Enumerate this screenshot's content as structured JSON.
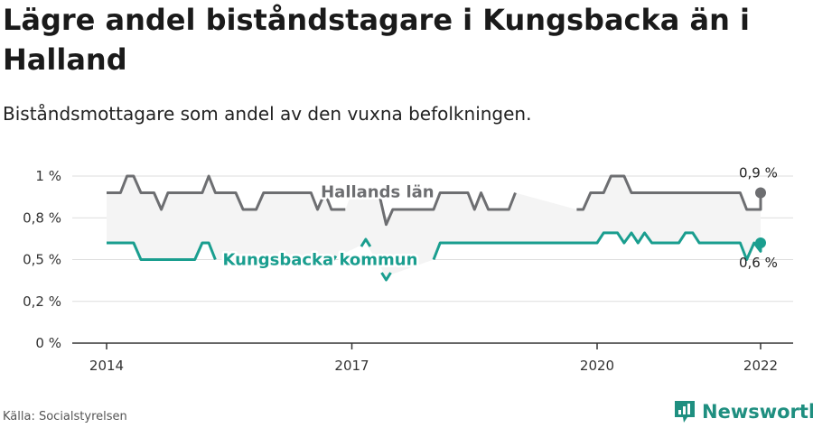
{
  "header": {
    "title": "Lägre andel biståndstagare i Kungsbacka än i Halland",
    "subtitle": "Biståndsmottagare som andel av den vuxna befolkningen."
  },
  "footer": {
    "source": "Källa: Socialstyrelsen",
    "brand": "Newsworthy"
  },
  "colors": {
    "halland": "#6d6e71",
    "kungsbacka": "#1a9e8f",
    "band": "#f4f4f4",
    "grid": "#dddddd",
    "axis": "#333333"
  },
  "icons": {
    "brand": "bar-chart-icon"
  },
  "chart_data": {
    "type": "line",
    "title": "Lägre andel biståndstagare i Kungsbacka än i Halland",
    "subtitle": "Biståndsmottagare som andel av den vuxna befolkningen.",
    "xlim": [
      2014,
      2022.25
    ],
    "ylim": [
      0,
      1.05
    ],
    "x_ticks": [
      2014,
      2017,
      2020,
      2022
    ],
    "x_tick_labels": [
      "2014",
      "2017",
      "2020",
      "2022"
    ],
    "y_ticks": [
      0,
      0.25,
      0.5,
      0.75,
      1.0
    ],
    "y_tick_labels": [
      "0 %",
      "0,2 %",
      "0,5 %",
      "0,8 %",
      "1 %"
    ],
    "grid": "horizontal",
    "series": [
      {
        "name": "Hallands län",
        "color": "#6d6e71",
        "label_at": [
          2016.62,
          0.905
        ],
        "end_label": "0,9 %",
        "points": [
          [
            2014.0,
            0.9
          ],
          [
            2014.17,
            0.9
          ],
          [
            2014.25,
            1.0
          ],
          [
            2014.33,
            1.0
          ],
          [
            2014.42,
            0.9
          ],
          [
            2014.58,
            0.9
          ],
          [
            2014.67,
            0.8
          ],
          [
            2014.75,
            0.9
          ],
          [
            2015.08,
            0.9
          ],
          [
            2015.17,
            0.9
          ],
          [
            2015.25,
            1.0
          ],
          [
            2015.33,
            0.9
          ],
          [
            2015.58,
            0.9
          ],
          [
            2015.67,
            0.8
          ],
          [
            2015.83,
            0.8
          ],
          [
            2015.92,
            0.9
          ],
          [
            2016.5,
            0.9
          ],
          [
            2016.58,
            0.8
          ],
          [
            2016.67,
            0.9
          ],
          [
            2016.75,
            0.8
          ],
          [
            2016.92,
            0.8
          ],
          null,
          [
            2017.0,
            0.9
          ],
          [
            2017.33,
            0.9
          ],
          [
            2017.42,
            0.71
          ],
          [
            2017.5,
            0.8
          ],
          [
            2017.67,
            0.8
          ],
          [
            2018.0,
            0.8
          ],
          [
            2018.08,
            0.9
          ],
          [
            2018.42,
            0.9
          ],
          [
            2018.5,
            0.8
          ],
          [
            2018.58,
            0.9
          ],
          [
            2018.67,
            0.8
          ],
          [
            2018.92,
            0.8
          ],
          [
            2019.0,
            0.9
          ],
          null,
          [
            2019.75,
            0.8
          ],
          [
            2019.83,
            0.8
          ],
          [
            2019.92,
            0.9
          ],
          [
            2020.08,
            0.9
          ],
          [
            2020.17,
            1.0
          ],
          [
            2020.33,
            1.0
          ],
          [
            2020.42,
            0.9
          ],
          [
            2021.75,
            0.9
          ],
          [
            2021.83,
            0.8
          ],
          [
            2022.0,
            0.8
          ],
          [
            2022.0,
            0.9
          ]
        ]
      },
      {
        "name": "Kungsbacka kommun",
        "color": "#1a9e8f",
        "label_at": [
          2015.42,
          0.5
        ],
        "end_label": "0,6 %",
        "points": [
          [
            2014.0,
            0.6
          ],
          [
            2014.33,
            0.6
          ],
          [
            2014.42,
            0.5
          ],
          [
            2015.08,
            0.5
          ],
          [
            2015.17,
            0.6
          ],
          [
            2015.25,
            0.6
          ],
          [
            2015.33,
            0.5
          ],
          null,
          [
            2016.75,
            0.5
          ],
          null,
          [
            2017.17,
            0.6
          ],
          null,
          [
            2017.42,
            0.4
          ],
          null,
          [
            2018.0,
            0.5
          ],
          [
            2018.08,
            0.6
          ],
          [
            2020.0,
            0.6
          ],
          [
            2020.08,
            0.66
          ],
          [
            2020.25,
            0.66
          ],
          [
            2020.33,
            0.6
          ],
          [
            2020.42,
            0.66
          ],
          [
            2020.5,
            0.6
          ],
          [
            2020.58,
            0.66
          ],
          [
            2020.67,
            0.6
          ],
          [
            2021.0,
            0.6
          ],
          [
            2021.08,
            0.66
          ],
          [
            2021.17,
            0.66
          ],
          [
            2021.25,
            0.6
          ],
          [
            2021.75,
            0.6
          ],
          [
            2021.83,
            0.5
          ],
          [
            2021.92,
            0.6
          ],
          [
            2022.0,
            0.55
          ],
          [
            2022.0,
            0.6
          ]
        ]
      }
    ]
  }
}
